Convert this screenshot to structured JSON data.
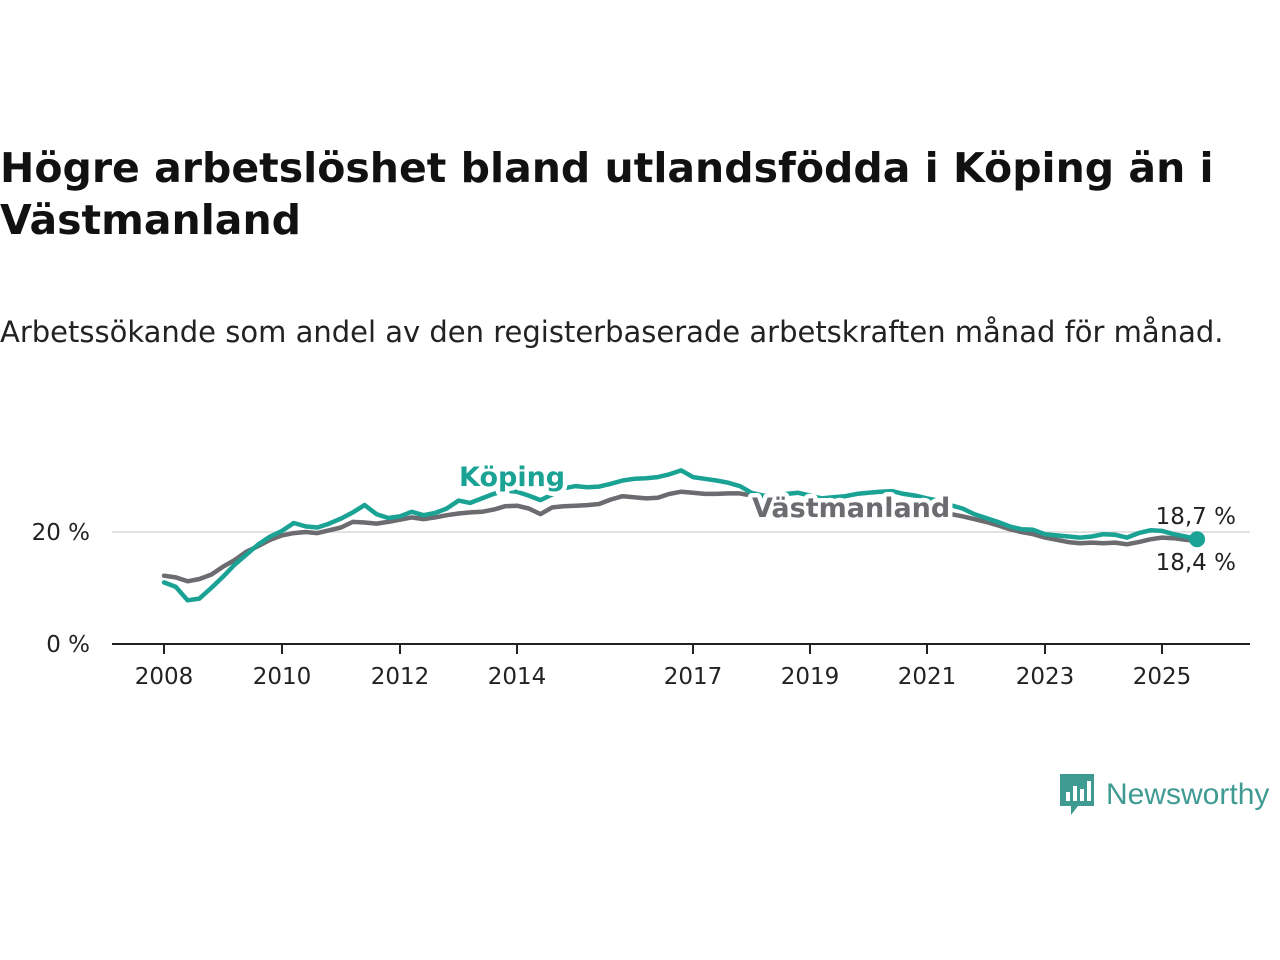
{
  "chart_data": {
    "type": "line",
    "title": "Högre arbetslöshet bland utlandsfödda i Köping än i Västmanland",
    "subtitle": "Arbetssökande som andel av den registerbaserade arbetskraften månad för månad.",
    "y_ticks": [
      "20 %",
      "0 %"
    ],
    "x_ticks": [
      "2008",
      "2010",
      "2012",
      "2014",
      "2017",
      "2019",
      "2021",
      "2023",
      "2025"
    ],
    "ylim": [
      0,
      30
    ],
    "grid": "horizontal",
    "series": [
      {
        "name": "Köping",
        "color": "#1aa295",
        "end_label": "18,7 %",
        "points": [
          [
            2008.0,
            11.0
          ],
          [
            2008.2,
            10.2
          ],
          [
            2008.4,
            7.8
          ],
          [
            2008.6,
            8.1
          ],
          [
            2008.8,
            10.0
          ],
          [
            2009.0,
            12.0
          ],
          [
            2009.2,
            14.2
          ],
          [
            2009.4,
            16.0
          ],
          [
            2009.6,
            17.8
          ],
          [
            2009.8,
            19.2
          ],
          [
            2010.0,
            20.2
          ],
          [
            2010.2,
            21.6
          ],
          [
            2010.4,
            21.0
          ],
          [
            2010.6,
            20.8
          ],
          [
            2010.8,
            21.5
          ],
          [
            2011.0,
            22.4
          ],
          [
            2011.2,
            23.5
          ],
          [
            2011.4,
            24.8
          ],
          [
            2011.6,
            23.2
          ],
          [
            2011.8,
            22.5
          ],
          [
            2012.0,
            22.8
          ],
          [
            2012.2,
            23.6
          ],
          [
            2012.4,
            23.0
          ],
          [
            2012.6,
            23.4
          ],
          [
            2012.8,
            24.2
          ],
          [
            2013.0,
            25.6
          ],
          [
            2013.2,
            25.2
          ],
          [
            2013.4,
            26.0
          ],
          [
            2013.6,
            26.8
          ],
          [
            2013.8,
            27.4
          ],
          [
            2014.0,
            27.2
          ],
          [
            2014.2,
            26.5
          ],
          [
            2014.4,
            25.7
          ],
          [
            2014.6,
            26.7
          ],
          [
            2014.8,
            27.8
          ],
          [
            2015.0,
            28.2
          ],
          [
            2015.2,
            28.0
          ],
          [
            2015.4,
            28.1
          ],
          [
            2015.6,
            28.6
          ],
          [
            2015.8,
            29.2
          ],
          [
            2016.0,
            29.5
          ],
          [
            2016.2,
            29.6
          ],
          [
            2016.4,
            29.8
          ],
          [
            2016.6,
            30.3
          ],
          [
            2016.8,
            31.0
          ],
          [
            2017.0,
            29.8
          ],
          [
            2017.2,
            29.5
          ],
          [
            2017.4,
            29.2
          ],
          [
            2017.6,
            28.8
          ],
          [
            2017.8,
            28.2
          ],
          [
            2018.0,
            27.0
          ],
          [
            2018.2,
            26.5
          ],
          [
            2018.4,
            26.5
          ],
          [
            2018.6,
            26.8
          ],
          [
            2018.8,
            27.0
          ],
          [
            2019.0,
            26.5
          ],
          [
            2019.2,
            26.0
          ],
          [
            2019.4,
            26.2
          ],
          [
            2019.6,
            26.4
          ],
          [
            2019.8,
            26.8
          ],
          [
            2020.0,
            27.0
          ],
          [
            2020.2,
            27.2
          ],
          [
            2020.4,
            27.3
          ],
          [
            2020.6,
            26.8
          ],
          [
            2020.8,
            26.5
          ],
          [
            2021.0,
            26.0
          ],
          [
            2021.2,
            25.6
          ],
          [
            2021.4,
            24.8
          ],
          [
            2021.6,
            24.2
          ],
          [
            2021.8,
            23.2
          ],
          [
            2022.0,
            22.5
          ],
          [
            2022.2,
            21.8
          ],
          [
            2022.4,
            21.0
          ],
          [
            2022.6,
            20.5
          ],
          [
            2022.8,
            20.4
          ],
          [
            2023.0,
            19.6
          ],
          [
            2023.2,
            19.4
          ],
          [
            2023.4,
            19.2
          ],
          [
            2023.6,
            19.0
          ],
          [
            2023.8,
            19.2
          ],
          [
            2024.0,
            19.6
          ],
          [
            2024.2,
            19.5
          ],
          [
            2024.4,
            19.0
          ],
          [
            2024.6,
            19.8
          ],
          [
            2024.8,
            20.3
          ],
          [
            2025.0,
            20.2
          ],
          [
            2025.2,
            19.6
          ],
          [
            2025.4,
            19.2
          ],
          [
            2025.6,
            18.7
          ]
        ]
      },
      {
        "name": "Västmanland",
        "color": "#6b6b70",
        "end_label": "18,4 %",
        "points": [
          [
            2008.0,
            12.2
          ],
          [
            2008.2,
            11.9
          ],
          [
            2008.4,
            11.2
          ],
          [
            2008.6,
            11.6
          ],
          [
            2008.8,
            12.4
          ],
          [
            2009.0,
            13.8
          ],
          [
            2009.2,
            15.0
          ],
          [
            2009.4,
            16.5
          ],
          [
            2009.6,
            17.5
          ],
          [
            2009.8,
            18.6
          ],
          [
            2010.0,
            19.4
          ],
          [
            2010.2,
            19.8
          ],
          [
            2010.4,
            20.0
          ],
          [
            2010.6,
            19.8
          ],
          [
            2010.8,
            20.3
          ],
          [
            2011.0,
            20.8
          ],
          [
            2011.2,
            21.8
          ],
          [
            2011.4,
            21.7
          ],
          [
            2011.6,
            21.5
          ],
          [
            2011.8,
            21.8
          ],
          [
            2012.0,
            22.2
          ],
          [
            2012.2,
            22.6
          ],
          [
            2012.4,
            22.3
          ],
          [
            2012.6,
            22.6
          ],
          [
            2012.8,
            23.0
          ],
          [
            2013.0,
            23.3
          ],
          [
            2013.2,
            23.5
          ],
          [
            2013.4,
            23.6
          ],
          [
            2013.6,
            24.0
          ],
          [
            2013.8,
            24.6
          ],
          [
            2014.0,
            24.7
          ],
          [
            2014.2,
            24.2
          ],
          [
            2014.4,
            23.2
          ],
          [
            2014.6,
            24.4
          ],
          [
            2014.8,
            24.6
          ],
          [
            2015.0,
            24.7
          ],
          [
            2015.2,
            24.8
          ],
          [
            2015.4,
            25.0
          ],
          [
            2015.6,
            25.8
          ],
          [
            2015.8,
            26.4
          ],
          [
            2016.0,
            26.2
          ],
          [
            2016.2,
            26.0
          ],
          [
            2016.4,
            26.1
          ],
          [
            2016.6,
            26.8
          ],
          [
            2016.8,
            27.2
          ],
          [
            2017.0,
            27.0
          ],
          [
            2017.2,
            26.8
          ],
          [
            2017.4,
            26.8
          ],
          [
            2017.6,
            26.9
          ],
          [
            2017.8,
            26.9
          ],
          [
            2018.0,
            26.5
          ],
          [
            2018.2,
            25.8
          ],
          [
            2018.4,
            25.3
          ],
          [
            2018.6,
            25.2
          ],
          [
            2018.8,
            25.2
          ],
          [
            2019.0,
            25.0
          ],
          [
            2019.2,
            24.8
          ],
          [
            2019.4,
            24.7
          ],
          [
            2019.6,
            24.6
          ],
          [
            2019.8,
            24.8
          ],
          [
            2020.0,
            25.0
          ],
          [
            2020.2,
            25.0
          ],
          [
            2020.4,
            25.1
          ],
          [
            2020.6,
            24.7
          ],
          [
            2020.8,
            24.4
          ],
          [
            2021.0,
            24.0
          ],
          [
            2021.2,
            23.6
          ],
          [
            2021.4,
            23.2
          ],
          [
            2021.6,
            22.8
          ],
          [
            2021.8,
            22.3
          ],
          [
            2022.0,
            21.8
          ],
          [
            2022.2,
            21.2
          ],
          [
            2022.4,
            20.5
          ],
          [
            2022.6,
            20.0
          ],
          [
            2022.8,
            19.6
          ],
          [
            2023.0,
            19.0
          ],
          [
            2023.2,
            18.6
          ],
          [
            2023.4,
            18.2
          ],
          [
            2023.6,
            18.0
          ],
          [
            2023.8,
            18.1
          ],
          [
            2024.0,
            18.0
          ],
          [
            2024.2,
            18.1
          ],
          [
            2024.4,
            17.8
          ],
          [
            2024.6,
            18.2
          ],
          [
            2024.8,
            18.7
          ],
          [
            2025.0,
            19.0
          ],
          [
            2025.2,
            18.9
          ],
          [
            2025.4,
            18.6
          ],
          [
            2025.6,
            18.4
          ]
        ]
      }
    ]
  },
  "brand": {
    "name": "Newsworthy",
    "icon": "chart-bubble-icon",
    "color": "#3f9b92"
  }
}
